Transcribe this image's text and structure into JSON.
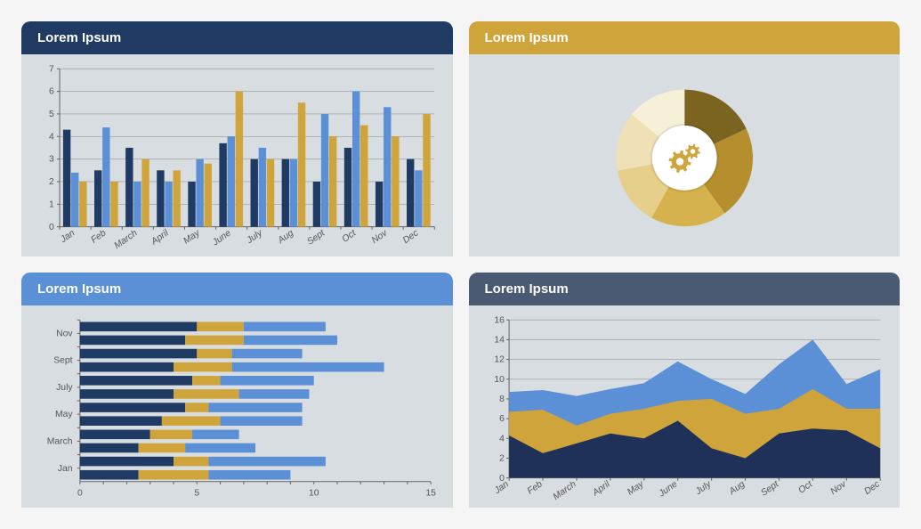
{
  "panels": {
    "bar": {
      "title": "Lorem Ipsum",
      "header_color": "#1f3a63",
      "categories": [
        "Jan",
        "Feb",
        "March",
        "April",
        "May",
        "June",
        "July",
        "Aug",
        "Sept",
        "Oct",
        "Nov",
        "Dec"
      ],
      "series": [
        {
          "color": "#1f3a63",
          "values": [
            4.3,
            2.5,
            3.5,
            2.5,
            2.0,
            3.7,
            3.0,
            3.0,
            2.0,
            3.5,
            2.0,
            3.0
          ]
        },
        {
          "color": "#5b8fd6",
          "values": [
            2.4,
            4.4,
            2.0,
            2.0,
            3.0,
            4.0,
            3.5,
            3.0,
            5.0,
            6.0,
            5.3,
            2.5
          ]
        },
        {
          "color": "#cfa43b",
          "values": [
            2.0,
            2.0,
            3.0,
            2.5,
            2.8,
            6.0,
            3.0,
            5.5,
            4.0,
            4.5,
            4.0,
            5.0
          ]
        }
      ],
      "ylim": [
        0,
        7
      ],
      "ytick_step": 1,
      "y_font_size": 10,
      "x_font_size": 10,
      "grid_color": "#999999",
      "background_color": "#d8dde2",
      "bar_group_width": 0.78
    },
    "donut": {
      "title": "Lorem Ipsum",
      "header_color": "#cfa43b",
      "slices": [
        {
          "color": "#7a6420",
          "value": 18
        },
        {
          "color": "#b58f2e",
          "value": 22
        },
        {
          "color": "#d6b24e",
          "value": 18
        },
        {
          "color": "#e6cf8a",
          "value": 14
        },
        {
          "color": "#efe0b6",
          "value": 14
        },
        {
          "color": "#f7f0d9",
          "value": 14
        }
      ],
      "inner_radius_ratio": 0.42,
      "center_circle_color": "#ffffff",
      "icon_color": "#cfa43b",
      "background_color": "#d8dde2"
    },
    "hbar": {
      "title": "Lorem Ipsum",
      "header_color": "#5b8fd6",
      "row_labels": [
        "Nov",
        "Sept",
        "July",
        "May",
        "March",
        "Jan"
      ],
      "rows_per_label": 2,
      "series": [
        {
          "color": "#1f3a63",
          "values": [
            5,
            4.5,
            5,
            4,
            4.8,
            4,
            4.5,
            3.5,
            3,
            2.5,
            4,
            2.5
          ]
        },
        {
          "color": "#cfa43b",
          "values": [
            2.0,
            2.5,
            1.5,
            2.5,
            1.2,
            2.8,
            1.0,
            2.5,
            1.8,
            2.0,
            1.5,
            3.0
          ]
        },
        {
          "color": "#5b8fd6",
          "values": [
            3.5,
            4.0,
            3.0,
            6.5,
            4.0,
            3.0,
            4.0,
            3.5,
            2.0,
            3.0,
            5.0,
            3.5
          ]
        }
      ],
      "xlim": [
        0,
        15
      ],
      "xtick_step": 5,
      "minor_step": 1,
      "grid_color": "#999999",
      "background_color": "#d8dde2",
      "bar_height_ratio": 0.7,
      "x_font_size": 10,
      "y_font_size": 10
    },
    "area": {
      "title": "Lorem Ipsum",
      "header_color": "#4a5a72",
      "categories": [
        "Jan",
        "Feb",
        "March",
        "April",
        "May",
        "June",
        "July",
        "Aug",
        "Sept",
        "Oct",
        "Nov",
        "Dec"
      ],
      "series": [
        {
          "color": "#1f3158",
          "values": [
            4.3,
            2.5,
            3.5,
            4.5,
            4.0,
            5.8,
            3.0,
            2.0,
            4.5,
            5.0,
            4.8,
            3.0
          ]
        },
        {
          "color": "#cfa43b",
          "values": [
            2.4,
            4.4,
            1.8,
            2.0,
            3.0,
            2.0,
            5.0,
            4.5,
            2.5,
            4.0,
            2.2,
            4.0
          ]
        },
        {
          "color": "#5b8fd6",
          "values": [
            2.0,
            2.0,
            3.0,
            2.5,
            2.6,
            4.0,
            2.0,
            2.0,
            4.5,
            5.0,
            2.5,
            4.0
          ]
        }
      ],
      "ylim": [
        0,
        16
      ],
      "ytick_step": 2,
      "grid_color": "#999999",
      "background_color": "#d8dde2",
      "x_font_size": 10,
      "y_font_size": 10
    }
  }
}
